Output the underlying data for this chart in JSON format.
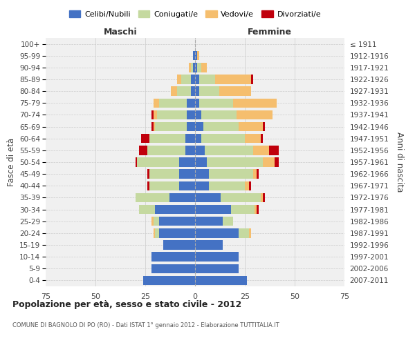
{
  "age_groups": [
    "0-4",
    "5-9",
    "10-14",
    "15-19",
    "20-24",
    "25-29",
    "30-34",
    "35-39",
    "40-44",
    "45-49",
    "50-54",
    "55-59",
    "60-64",
    "65-69",
    "70-74",
    "75-79",
    "80-84",
    "85-89",
    "90-94",
    "95-99",
    "100+"
  ],
  "birth_years": [
    "2007-2011",
    "2002-2006",
    "1997-2001",
    "1992-1996",
    "1987-1991",
    "1982-1986",
    "1977-1981",
    "1972-1976",
    "1967-1971",
    "1962-1966",
    "1957-1961",
    "1952-1956",
    "1947-1951",
    "1942-1946",
    "1937-1941",
    "1932-1936",
    "1927-1931",
    "1922-1926",
    "1917-1921",
    "1912-1916",
    "≤ 1911"
  ],
  "colors": {
    "celibi": "#4472c4",
    "coniugati": "#c5d9a0",
    "vedovi": "#f5be6e",
    "divorziati": "#c0000c",
    "background": "#f0f0f0",
    "grid": "#cccccc"
  },
  "maschi": {
    "celibi": [
      26,
      22,
      22,
      16,
      18,
      18,
      20,
      13,
      8,
      8,
      8,
      5,
      5,
      4,
      4,
      4,
      2,
      2,
      1,
      1,
      0
    ],
    "coniugati": [
      0,
      0,
      0,
      0,
      2,
      3,
      8,
      17,
      15,
      15,
      21,
      19,
      18,
      16,
      15,
      14,
      7,
      5,
      1,
      0,
      0
    ],
    "vedovi": [
      0,
      0,
      0,
      0,
      1,
      1,
      0,
      0,
      0,
      0,
      0,
      0,
      0,
      1,
      2,
      3,
      3,
      2,
      1,
      0,
      0
    ],
    "divorziati": [
      0,
      0,
      0,
      0,
      0,
      0,
      0,
      0,
      1,
      1,
      1,
      4,
      4,
      1,
      1,
      0,
      0,
      0,
      0,
      0,
      0
    ]
  },
  "femmine": {
    "celibi": [
      26,
      22,
      22,
      14,
      22,
      14,
      18,
      13,
      7,
      7,
      6,
      5,
      3,
      4,
      3,
      2,
      2,
      2,
      1,
      1,
      0
    ],
    "coniugati": [
      0,
      0,
      0,
      0,
      5,
      5,
      12,
      20,
      18,
      22,
      28,
      24,
      22,
      18,
      18,
      17,
      10,
      8,
      2,
      0,
      0
    ],
    "vedovi": [
      0,
      0,
      0,
      0,
      1,
      0,
      1,
      1,
      2,
      2,
      6,
      8,
      8,
      12,
      18,
      22,
      16,
      18,
      3,
      1,
      0
    ],
    "divorziati": [
      0,
      0,
      0,
      0,
      0,
      0,
      1,
      1,
      1,
      1,
      2,
      5,
      1,
      1,
      0,
      0,
      0,
      1,
      0,
      0,
      0
    ]
  },
  "title": "Popolazione per età, sesso e stato civile - 2012",
  "subtitle": "COMUNE DI BAGNOLO DI PO (RO) - Dati ISTAT 1° gennaio 2012 - Elaborazione TUTTITALIA.IT",
  "xlabel_left": "Maschi",
  "xlabel_right": "Femmine",
  "ylabel_left": "Fasce di età",
  "ylabel_right": "Anni di nascita",
  "xlim": 75,
  "legend_labels": [
    "Celibi/Nubili",
    "Coniugati/e",
    "Vedovi/e",
    "Divorziati/e"
  ]
}
